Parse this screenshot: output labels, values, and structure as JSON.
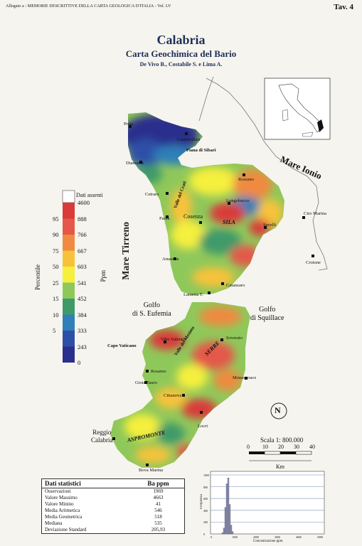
{
  "header": {
    "left": "Allegato a : MEMORIE DESCRITTIVE DELLA CARTA GEOLOGICA D'ITALIA - Vol. LV",
    "tav": "Tav. 4"
  },
  "title": "Calabria",
  "subtitle": "Carta Geochimica del Bario",
  "authors": "De Vivo B., Costabile S. e Lima A.",
  "legend": {
    "absent_label": "Dati assenti",
    "percentile_label": "Percentile",
    "ppm_label": "Ppm",
    "classes": [
      {
        "ppm": "4600",
        "color": "#d93a3a"
      },
      {
        "ppm": "888",
        "percentile": "95",
        "color": "#e4584a"
      },
      {
        "ppm": "766",
        "percentile": "90",
        "color": "#ef8a40"
      },
      {
        "ppm": "667",
        "percentile": "75",
        "color": "#f7c23a"
      },
      {
        "ppm": "603",
        "percentile": "50",
        "color": "#f5ef3e"
      },
      {
        "ppm": "541",
        "percentile": "25",
        "color": "#8fc85a"
      },
      {
        "ppm": "452",
        "percentile": "15",
        "color": "#3f9a6a"
      },
      {
        "ppm": "384",
        "percentile": "10",
        "color": "#2f7fb8"
      },
      {
        "ppm": "333",
        "percentile": "5",
        "color": "#2d4fa8"
      },
      {
        "ppm": "243",
        "color": "#2a2e8c"
      },
      {
        "ppm": "0"
      }
    ]
  },
  "seas": {
    "tirreno": "Mare Tirreno",
    "ionio": "Mare Ionio"
  },
  "gulfs": {
    "eufemia": "Golfo\ndi S. Eufemia",
    "squillace": "Golfo\ndi Squillace"
  },
  "places": {
    "praia": "Praia",
    "castrovillari": "Castrovillari",
    "diamante": "Diamante",
    "piana_sibari": "Piana di Sibari",
    "valle_crati": "Valle del Crati",
    "cetraro": "Cetraro",
    "rossano": "Rossano",
    "longobucco": "Longobucco",
    "paola": "Paola",
    "cosenza": "Cosenza",
    "sila": "SILA",
    "savelli": "Savelli",
    "ciro_marina": "Ciro Marina",
    "amantea": "Amantea",
    "crotone": "Crotone",
    "catanzaro": "Catanzaro",
    "lamezia": "Lametia T.",
    "capo_vaticano": "Capo Vaticano",
    "vibo": "Vibo Valentia",
    "soverato": "Soverato",
    "valle_mesima": "Valle del Mesima",
    "serre": "SERRE",
    "rosarno": "Rosarno",
    "gioia": "Gioia Tauro",
    "monasterace": "Monasterace",
    "cittanova": "Cittanova",
    "locri": "Locri",
    "reggio": "Reggio\nCalabria",
    "aspromonte": "ASPROMONTE",
    "bova": "Bova Marina"
  },
  "scale": {
    "label": "Scala 1: 800.000",
    "ticks": [
      "0",
      "10",
      "20",
      "30",
      "40"
    ],
    "unit": "Km"
  },
  "stats": {
    "title": "Dati statistici",
    "unit": "Ba ppm",
    "rows": [
      {
        "k": "Osservazioni",
        "v": "1969"
      },
      {
        "k": "Valore Massimo",
        "v": "4663"
      },
      {
        "k": "Valore Minino",
        "v": "41"
      },
      {
        "k": "Media Aritmetica",
        "v": "546"
      },
      {
        "k": "Media Geometrica",
        "v": "518"
      },
      {
        "k": "Mediana",
        "v": "535"
      },
      {
        "k": "Deviazione Standard",
        "v": "205,93"
      }
    ]
  },
  "histogram": {
    "ylabel": "Frequenza",
    "xlabel": "Concentrazione ppm",
    "yticks": [
      "1000",
      "800",
      "600",
      "400",
      "200",
      "0"
    ],
    "xticks": [
      "0",
      "1000",
      "2000",
      "3000",
      "4000",
      "5000"
    ]
  },
  "north": "N"
}
